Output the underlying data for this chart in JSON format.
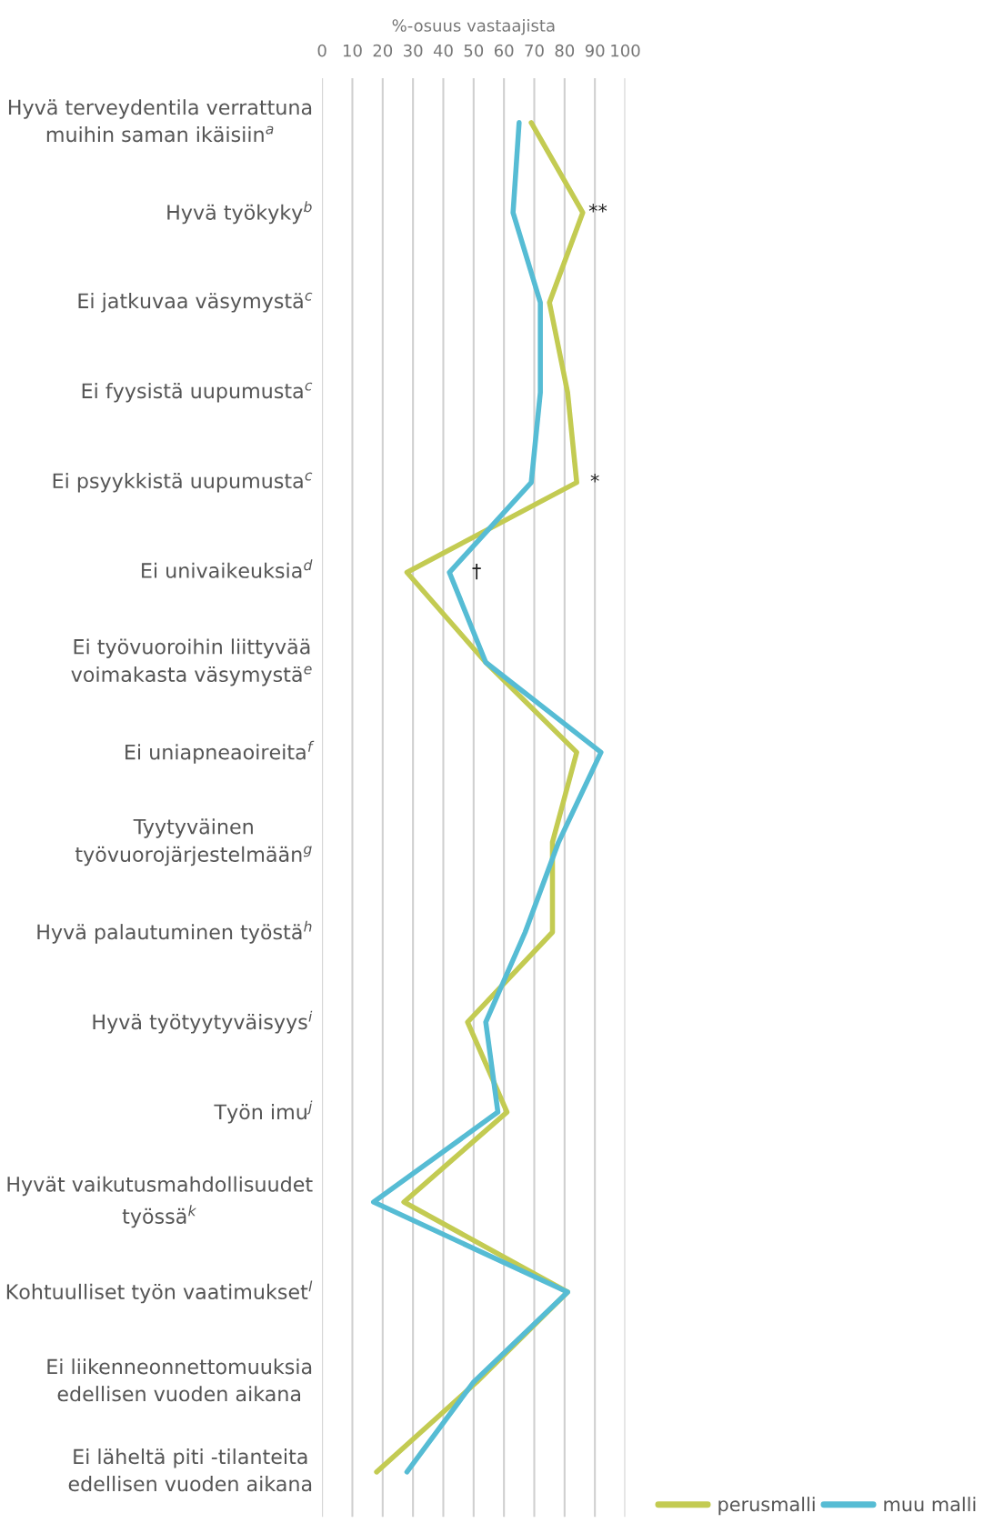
{
  "chart_data": {
    "type": "line",
    "orientation": "horizontal",
    "xlabel": "%-osuus vastaajista",
    "categories": [
      "Hyvä terveydentila verrattuna\nmuihin saman ikäisiin$^{a}$",
      "Hyvä työkyky$^{b}$",
      "Ei jatkuvaa väsymystä$^{c}$",
      "Ei fyysistä uupumusta$^{c}$",
      "Ei psyykkistä uupumusta$^{c}$",
      "Ei univaikeuksia$^{d}$",
      "Ei työvuoroihin liittyvää\nvoimakasta väsymystä$^{e}$",
      "Ei uniapneaoireita$^{f}$",
      "Tyytyväinen\ntyövuorojärjestelmään$^{g}$",
      "Hyvä palautuminen työstä$^{h}$",
      "Hyvä työtyytyväisyys$^{i}$",
      "Työn imu$^{j}$",
      "Hyvät vaikutusmahdollisuudet\ntyössä$^{k}$",
      "Kohtuulliset työn vaatimukset$^{l}$",
      "Ei liikenneonnettomuuksia\nedellisen vuoden aikana",
      "Ei läheltä piti -tilanteita\nedellisen vuoden aikana"
    ],
    "series": [
      {
        "name": "perusmalli",
        "color": "#c3cb52",
        "values": [
          69,
          86,
          75,
          81,
          84,
          28,
          54,
          84,
          76,
          76,
          48,
          61,
          27,
          81,
          51,
          18
        ]
      },
      {
        "name": "muu malli",
        "color": "#56bcd4",
        "values": [
          65,
          63,
          72,
          72,
          69,
          42,
          54,
          92,
          78,
          67,
          54,
          58,
          17,
          81,
          50,
          28
        ]
      }
    ],
    "xlim": [
      0,
      100
    ],
    "xticks": [
      0,
      10,
      20,
      30,
      40,
      50,
      60,
      70,
      80,
      90,
      100
    ],
    "grid": "x",
    "legend": "bottom right",
    "line_style": "solid",
    "marker": "none",
    "annotations": [
      "**",
      "*",
      "†"
    ]
  }
}
